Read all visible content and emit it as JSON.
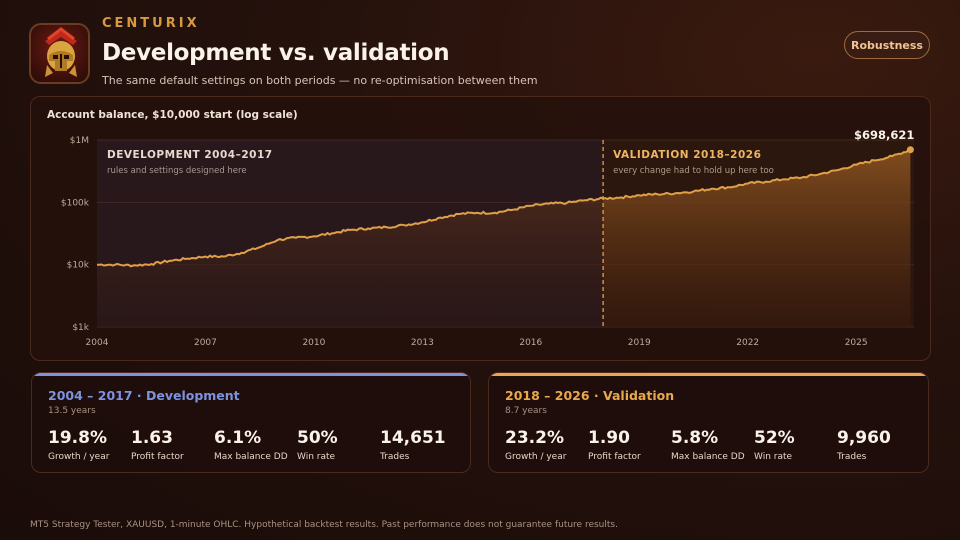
{
  "brand": "CENTURIX",
  "title": "Development vs. validation",
  "subtitle": "The same default settings on both periods — no re-optimisation between them",
  "robustness_button": "Robustness",
  "chart_caption": "Account balance, $10,000 start (log scale)",
  "chart_data": {
    "type": "area",
    "title": "Account balance, $10,000 start (log scale)",
    "y_scale": "log",
    "ylim": [
      1000,
      1000000
    ],
    "y_ticks": [
      {
        "value": 1000000,
        "label": "$1M"
      },
      {
        "value": 100000,
        "label": "$100k"
      },
      {
        "value": 10000,
        "label": "$10k"
      },
      {
        "value": 1000,
        "label": "$1k"
      }
    ],
    "xlim": [
      2004.0,
      2026.6
    ],
    "x_ticks": [
      {
        "value": 2004,
        "label": "2004"
      },
      {
        "value": 2007,
        "label": "2007"
      },
      {
        "value": 2010,
        "label": "2010"
      },
      {
        "value": 2013,
        "label": "2013"
      },
      {
        "value": 2016,
        "label": "2016"
      },
      {
        "value": 2019,
        "label": "2019"
      },
      {
        "value": 2022,
        "label": "2022"
      },
      {
        "value": 2025,
        "label": "2025"
      }
    ],
    "split_year": 2018.0,
    "regions": [
      {
        "label": "DEVELOPMENT 2004–2017",
        "note": "rules and settings designed here"
      },
      {
        "label": "VALIDATION 2018–2026",
        "note": "every change had to hold up here too"
      }
    ],
    "end_label": "$698,621",
    "series": [
      {
        "x": [
          2004.0,
          2004.5,
          2005.0,
          2005.5,
          2006.0,
          2006.5,
          2007.0,
          2007.5,
          2008.0,
          2008.5,
          2009.0,
          2009.5,
          2010.0,
          2010.5,
          2011.0,
          2011.5,
          2012.0,
          2012.5,
          2013.0,
          2013.5,
          2014.0,
          2014.5,
          2015.0,
          2015.5,
          2016.0,
          2016.5,
          2017.0,
          2017.5,
          2018.0,
          2018.5,
          2019.0,
          2019.5,
          2020.0,
          2020.5,
          2021.0,
          2021.5,
          2022.0,
          2022.5,
          2023.0,
          2023.5,
          2024.0,
          2024.5,
          2025.0,
          2025.5,
          2026.0,
          2026.5
        ],
        "values": [
          10000,
          10000,
          9700,
          10200,
          11500,
          12500,
          13500,
          13500,
          15500,
          19000,
          25000,
          27000,
          28500,
          32000,
          36000,
          38000,
          40000,
          43000,
          48000,
          57000,
          65000,
          68000,
          68000,
          76000,
          88000,
          95000,
          98000,
          108000,
          115000,
          120000,
          130000,
          135000,
          140000,
          150000,
          165000,
          175000,
          200000,
          215000,
          235000,
          250000,
          285000,
          330000,
          400000,
          470000,
          550000,
          698621
        ]
      }
    ]
  },
  "dev_card": {
    "title": "2004 – 2017 · Development",
    "sub": "13.5 years",
    "color": "#7d93e0",
    "metrics": [
      {
        "value": "19.8%",
        "label": "Growth / year"
      },
      {
        "value": "1.63",
        "label": "Profit factor"
      },
      {
        "value": "6.1%",
        "label": "Max balance DD"
      },
      {
        "value": "50%",
        "label": "Win rate"
      },
      {
        "value": "14,651",
        "label": "Trades"
      }
    ]
  },
  "val_card": {
    "title": "2018 – 2026 · Validation",
    "sub": "8.7 years",
    "color": "#e9a84e",
    "metrics": [
      {
        "value": "23.2%",
        "label": "Growth / year"
      },
      {
        "value": "1.90",
        "label": "Profit factor"
      },
      {
        "value": "5.8%",
        "label": "Max balance DD"
      },
      {
        "value": "52%",
        "label": "Win rate"
      },
      {
        "value": "9,960",
        "label": "Trades"
      }
    ]
  },
  "footer": "MT5 Strategy Tester, XAUUSD, 1-minute OHLC. Hypothetical backtest results. Past performance does not guarantee future results."
}
